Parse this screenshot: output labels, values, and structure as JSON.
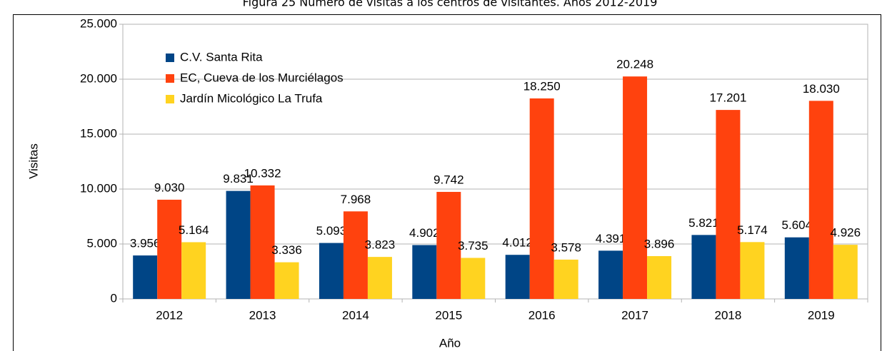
{
  "chart_data": {
    "type": "bar",
    "title": "Figura 25          Número de visitas a los centros de visitantes. Años 2012-2019",
    "x_label": "Año",
    "y_label": "Visitas",
    "categories": [
      "2012",
      "2013",
      "2014",
      "2015",
      "2016",
      "2017",
      "2018",
      "2019"
    ],
    "series": [
      {
        "name": "C.V. Santa Rita",
        "color": "#004586",
        "values": [
          3956,
          9831,
          5093,
          4902,
          4012,
          4391,
          5821,
          5604
        ],
        "value_labels": [
          "3.956",
          "9.831",
          "5.093",
          "4.902",
          "4.012",
          "4.391",
          "5.821",
          "5.604"
        ]
      },
      {
        "name": "EC, Cueva de los Murciélagos",
        "color": "#ff420e",
        "values": [
          9030,
          10332,
          7968,
          9742,
          18250,
          20248,
          17201,
          18030
        ],
        "value_labels": [
          "9.030",
          "10.332",
          "7.968",
          "9.742",
          "18.250",
          "20.248",
          "17.201",
          "18.030"
        ]
      },
      {
        "name": "Jardín Micológico La Trufa",
        "color": "#ffd320",
        "values": [
          5164,
          3336,
          3823,
          3735,
          3578,
          3896,
          5174,
          4926
        ],
        "value_labels": [
          "5.164",
          "3.336",
          "3.823",
          "3.735",
          "3.578",
          "3.896",
          "5.174",
          "4.926"
        ]
      }
    ],
    "ylim": [
      0,
      25000
    ],
    "yticks": [
      0,
      {
        "value": 5000,
        "label": "5.000"
      },
      {
        "value": 10000,
        "label": "10.000"
      },
      {
        "value": 15000,
        "label": "15.000"
      },
      {
        "value": 20000,
        "label": "20.000"
      },
      {
        "value": 25000,
        "label": "25.000"
      }
    ],
    "grid": true,
    "legend": "upper left"
  }
}
